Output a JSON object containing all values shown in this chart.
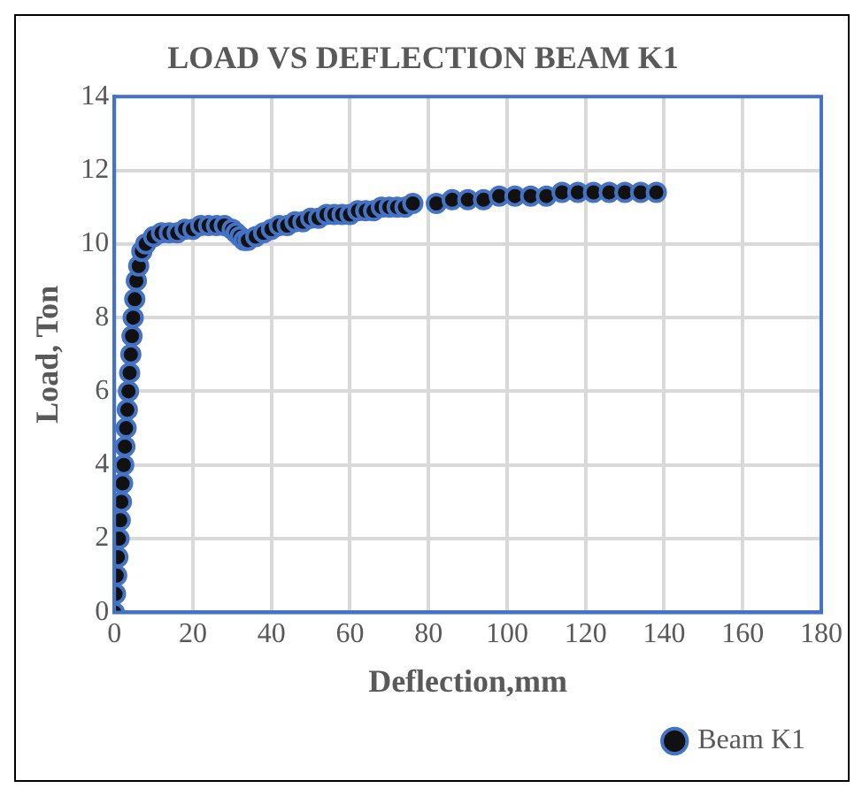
{
  "chart_data": {
    "type": "scatter",
    "title": "LOAD VS DEFLECTION BEAM K1",
    "xlabel": "Deflection,mm",
    "ylabel": "Load, Ton",
    "series": [
      {
        "name": "Beam K1",
        "color": "#111111",
        "x": [
          0,
          0.3,
          0.6,
          0.9,
          1.2,
          1.5,
          1.8,
          2.1,
          2.4,
          2.7,
          3,
          3.3,
          3.6,
          3.9,
          4.2,
          4.5,
          4.8,
          5.2,
          5.6,
          6.2,
          7,
          8,
          10,
          12,
          14,
          16,
          18,
          20,
          22,
          24,
          26,
          28,
          30,
          31,
          32,
          33,
          34,
          36,
          38,
          40,
          42,
          44,
          46,
          48,
          50,
          52,
          54,
          56,
          58,
          60,
          62,
          64,
          66,
          68,
          70,
          72,
          74,
          76,
          82,
          86,
          90,
          94,
          98,
          102,
          106,
          110,
          114,
          118,
          122,
          126,
          130,
          134,
          138
        ],
        "values": [
          0,
          0.5,
          1,
          1.5,
          2,
          2.5,
          3,
          3.5,
          4,
          4.5,
          5,
          5.5,
          6,
          6.5,
          7,
          7.5,
          8,
          8.5,
          9,
          9.4,
          9.8,
          10,
          10.2,
          10.3,
          10.3,
          10.3,
          10.4,
          10.4,
          10.5,
          10.5,
          10.5,
          10.5,
          10.4,
          10.3,
          10.2,
          10.1,
          10.1,
          10.2,
          10.3,
          10.4,
          10.5,
          10.5,
          10.6,
          10.6,
          10.7,
          10.7,
          10.8,
          10.8,
          10.8,
          10.8,
          10.9,
          10.9,
          10.9,
          11,
          11,
          11,
          11,
          11.1,
          11.1,
          11.2,
          11.2,
          11.2,
          11.3,
          11.3,
          11.3,
          11.3,
          11.4,
          11.4,
          11.4,
          11.4,
          11.4,
          11.4,
          11.4
        ]
      }
    ],
    "xlim": [
      0,
      180
    ],
    "xticks": [
      0,
      20,
      40,
      60,
      80,
      100,
      120,
      140,
      160,
      180
    ],
    "ylim": [
      0,
      14
    ],
    "yticks": [
      0,
      2,
      4,
      6,
      8,
      10,
      12,
      14
    ],
    "grid": true,
    "legend": "bottom right",
    "marker": "circle"
  }
}
